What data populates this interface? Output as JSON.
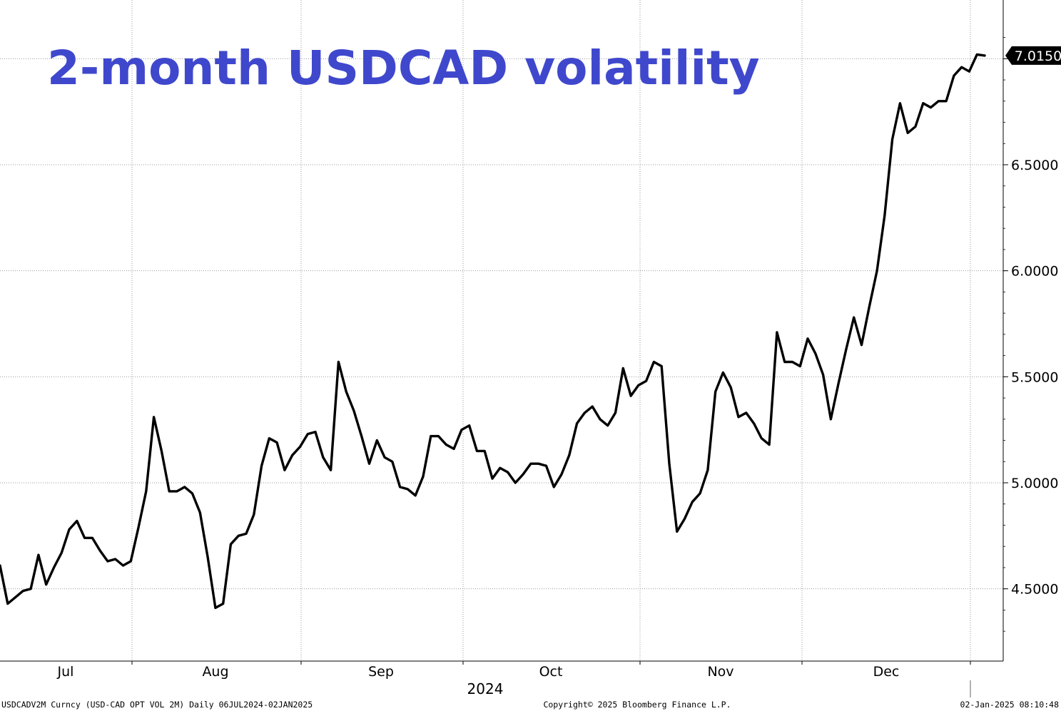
{
  "chart_data": {
    "type": "line",
    "title": "2-month USDCAD volatility",
    "series": [
      {
        "values": [
          4.61,
          4.43,
          4.46,
          4.49,
          4.5,
          4.66,
          4.52,
          4.6,
          4.67,
          4.78,
          4.82,
          4.74,
          4.74,
          4.68,
          4.63,
          4.64,
          4.61,
          4.63,
          4.79,
          4.96,
          5.31,
          5.15,
          4.96,
          4.96,
          4.98,
          4.95,
          4.86,
          4.65,
          4.41,
          4.43,
          4.71,
          4.75,
          4.76,
          4.85,
          5.08,
          5.21,
          5.19,
          5.06,
          5.13,
          5.17,
          5.23,
          5.24,
          5.12,
          5.06,
          5.57,
          5.43,
          5.34,
          5.22,
          5.09,
          5.2,
          5.12,
          5.1,
          4.98,
          4.97,
          4.94,
          5.03,
          5.22,
          5.22,
          5.18,
          5.16,
          5.25,
          5.27,
          5.15,
          5.15,
          5.02,
          5.07,
          5.05,
          5.0,
          5.04,
          5.09,
          5.09,
          5.08,
          4.98,
          5.04,
          5.13,
          5.28,
          5.33,
          5.36,
          5.3,
          5.27,
          5.33,
          5.54,
          5.41,
          5.46,
          5.48,
          5.57,
          5.55,
          5.09,
          4.77,
          4.83,
          4.91,
          4.95,
          5.06,
          5.43,
          5.52,
          5.45,
          5.31,
          5.33,
          5.28,
          5.21,
          5.18,
          5.71,
          5.57,
          5.57,
          5.55,
          5.68,
          5.61,
          5.51,
          5.3,
          5.47,
          5.63,
          5.78,
          5.65,
          5.83,
          6.0,
          6.26,
          6.62,
          6.79,
          6.65,
          6.68,
          6.79,
          6.77,
          6.8,
          6.8,
          6.92,
          6.96,
          6.94,
          7.02,
          7.015
        ]
      }
    ],
    "x_start": "2024-07-06",
    "x_end": "2025-01-02",
    "x_tick_labels": [
      "Jul",
      "Aug",
      "Sep",
      "Oct",
      "Nov",
      "Dec"
    ],
    "year_label": "2024",
    "y_tick_labels": [
      "4.5000",
      "5.0000",
      "5.5000",
      "6.0000",
      "6.5000"
    ],
    "ylim": [
      4.2,
      7.2
    ],
    "last_value_label": "7.0150",
    "grid": true,
    "grid_style": "dotted",
    "line_color": "#000000",
    "title_color": "#3f48cc",
    "footer": {
      "left": "USDCADV2M Curncy (USD-CAD OPT VOL 2M)  Daily 06JUL2024-02JAN2025",
      "center": "Copyright© 2025 Bloomberg Finance L.P.",
      "right": "02-Jan-2025 08:10:48"
    }
  }
}
